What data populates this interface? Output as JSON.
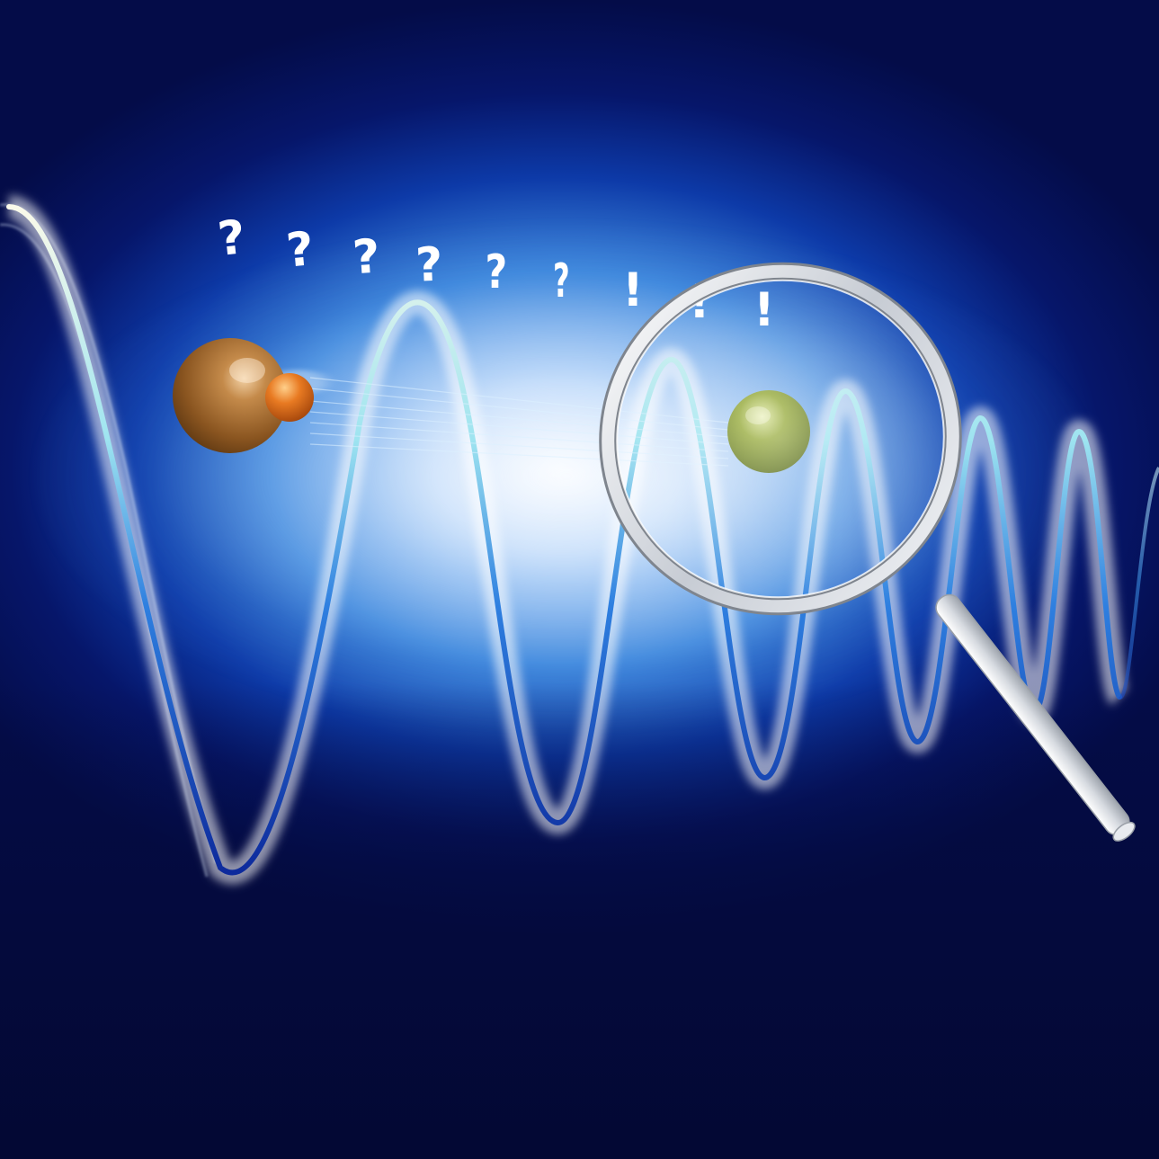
{
  "scene": {
    "background_color": "#050a3f",
    "glow_color": "#eef5ff",
    "wave_color_light": "#f4f1dc",
    "wave_color_mid": "#5fc9e6",
    "wave_color_dark": "#1236b0",
    "atom_large_color": "#8a5a25",
    "atom_small_color": "#d2621a",
    "atom_target_color": "#6f8a1c",
    "magnifier_color": "#d9dde3"
  },
  "glyphs": [
    "?",
    "?",
    "?",
    "?",
    "?",
    "?",
    "!",
    "!",
    "!"
  ],
  "icons": [
    "molecule-icon",
    "atom-icon",
    "magnifying-glass-icon",
    "wave-icon"
  ]
}
